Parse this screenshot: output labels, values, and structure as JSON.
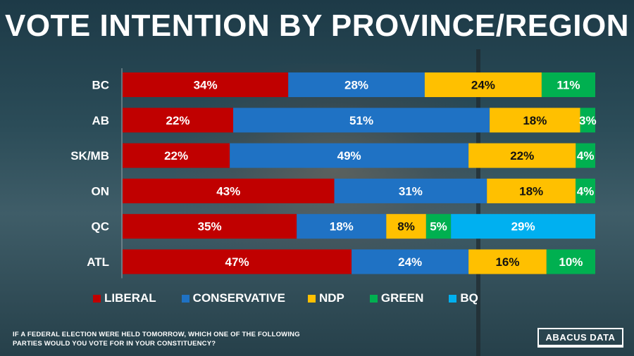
{
  "title": "VOTE INTENTION BY PROVINCE/REGION",
  "footnote": "IF A FEDERAL ELECTION WERE HELD TOMORROW, WHICH ONE OF THE FOLLOWING PARTIES WOULD YOU VOTE FOR IN YOUR CONSTITUENCY?",
  "logo": "ABACUS DATA",
  "chart_data": {
    "type": "bar",
    "orientation": "horizontal",
    "stacked": true,
    "categories": [
      "BC",
      "AB",
      "SK/MB",
      "ON",
      "QC",
      "ATL"
    ],
    "series": [
      {
        "name": "LIBERAL",
        "color": "#c00000",
        "values": [
          34,
          22,
          22,
          43,
          35,
          47
        ]
      },
      {
        "name": "CONSERVATIVE",
        "color": "#1f72c4",
        "values": [
          28,
          51,
          49,
          31,
          18,
          24
        ]
      },
      {
        "name": "NDP",
        "color": "#ffc000",
        "values": [
          24,
          18,
          22,
          18,
          8,
          16
        ]
      },
      {
        "name": "GREEN",
        "color": "#00b050",
        "values": [
          11,
          3,
          4,
          4,
          5,
          10
        ]
      },
      {
        "name": "BQ",
        "color": "#00b0f0",
        "values": [
          0,
          0,
          0,
          0,
          29,
          0
        ]
      }
    ],
    "value_suffix": "%",
    "legend_position": "bottom"
  }
}
